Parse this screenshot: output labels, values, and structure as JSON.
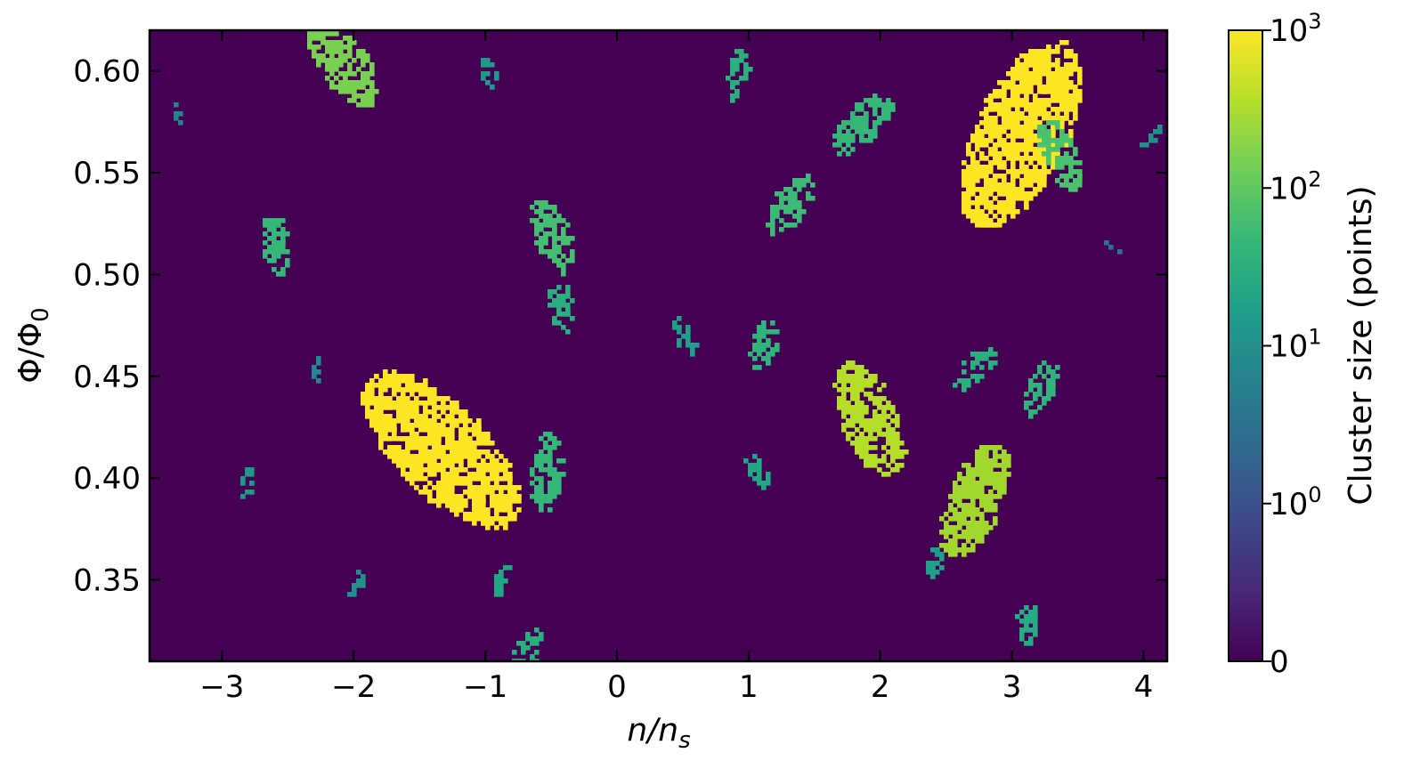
{
  "chart_data": {
    "type": "heatmap",
    "description_note": "",
    "xlabel": "n/n_s",
    "xlabel_main": "n/n",
    "xlabel_sub": "s",
    "ylabel_main": "Φ/Φ",
    "ylabel_sub": "0",
    "xlim": [
      -3.55,
      4.18
    ],
    "ylim": [
      0.31,
      0.62
    ],
    "x_ticks": [
      -3,
      -2,
      -1,
      0,
      1,
      2,
      3,
      4
    ],
    "x_tick_labels": [
      "−3",
      "−2",
      "−1",
      "0",
      "1",
      "2",
      "3",
      "4"
    ],
    "y_ticks": [
      0.35,
      0.4,
      0.45,
      0.5,
      0.55,
      0.6
    ],
    "y_tick_labels": [
      "0.35",
      "0.40",
      "0.45",
      "0.50",
      "0.55",
      "0.60"
    ],
    "background_color": "#440154",
    "colorbar": {
      "label": "Cluster size (points)",
      "scale": "log (symlog, 0 at bottom)",
      "ticks": [
        "0",
        "10^0",
        "10^1",
        "10^2",
        "10^3"
      ],
      "tick_bases": [
        "0",
        "10",
        "10",
        "10",
        "10"
      ],
      "tick_exps": [
        "",
        "0",
        "1",
        "2",
        "3"
      ],
      "colormap": "viridis",
      "colormap_stops": [
        "#440154",
        "#482878",
        "#3e4989",
        "#31688e",
        "#26828e",
        "#1f9e89",
        "#35b779",
        "#6ece58",
        "#b5de2b",
        "#fde725"
      ]
    },
    "clusters": [
      {
        "x": -1.35,
        "y": 0.415,
        "size": 1000,
        "color": "#fde725"
      },
      {
        "x": 3.05,
        "y": 0.57,
        "size": 1000,
        "color": "#fde725"
      },
      {
        "x": 1.9,
        "y": 0.43,
        "size": 300,
        "color": "#b5de2b"
      },
      {
        "x": 2.7,
        "y": 0.39,
        "size": 300,
        "color": "#a2d82e"
      },
      {
        "x": -2.1,
        "y": 0.605,
        "size": 200,
        "color": "#7ad151"
      },
      {
        "x": -0.55,
        "y": 0.405,
        "size": 100,
        "color": "#35b779"
      },
      {
        "x": -0.5,
        "y": 0.52,
        "size": 100,
        "color": "#44bf70"
      },
      {
        "x": 3.35,
        "y": 0.56,
        "size": 100,
        "color": "#4ac16d"
      },
      {
        "x": 1.85,
        "y": 0.575,
        "size": 100,
        "color": "#35b779"
      },
      {
        "x": 1.3,
        "y": 0.535,
        "size": 80,
        "color": "#3bbb75"
      },
      {
        "x": -2.6,
        "y": 0.515,
        "size": 60,
        "color": "#35b779"
      },
      {
        "x": 1.1,
        "y": 0.465,
        "size": 50,
        "color": "#2fb47c"
      },
      {
        "x": 3.2,
        "y": 0.445,
        "size": 50,
        "color": "#2fb47c"
      },
      {
        "x": 2.7,
        "y": 0.455,
        "size": 40,
        "color": "#2ab07f"
      },
      {
        "x": 0.9,
        "y": 0.6,
        "size": 40,
        "color": "#2ab07f"
      },
      {
        "x": -0.45,
        "y": 0.485,
        "size": 40,
        "color": "#2ab07f"
      },
      {
        "x": -0.7,
        "y": 0.315,
        "size": 40,
        "color": "#2ab07f"
      },
      {
        "x": 3.1,
        "y": 0.33,
        "size": 30,
        "color": "#25ac82"
      },
      {
        "x": -0.9,
        "y": 0.35,
        "size": 20,
        "color": "#22a785"
      },
      {
        "x": 1.05,
        "y": 0.405,
        "size": 20,
        "color": "#22a785"
      },
      {
        "x": 0.5,
        "y": 0.47,
        "size": 20,
        "color": "#1fa188"
      },
      {
        "x": 2.4,
        "y": 0.36,
        "size": 20,
        "color": "#1fa188"
      },
      {
        "x": -1.0,
        "y": 0.6,
        "size": 15,
        "color": "#1f9a8a"
      },
      {
        "x": -2.8,
        "y": 0.4,
        "size": 15,
        "color": "#1f9a8a"
      },
      {
        "x": -2.0,
        "y": 0.35,
        "size": 10,
        "color": "#21918c"
      },
      {
        "x": -2.3,
        "y": 0.455,
        "size": 10,
        "color": "#23898e"
      },
      {
        "x": -3.35,
        "y": 0.58,
        "size": 5,
        "color": "#25838e"
      },
      {
        "x": 4.05,
        "y": 0.57,
        "size": 10,
        "color": "#21918c"
      },
      {
        "x": 3.75,
        "y": 0.515,
        "size": 3,
        "color": "#2c728e"
      }
    ]
  }
}
